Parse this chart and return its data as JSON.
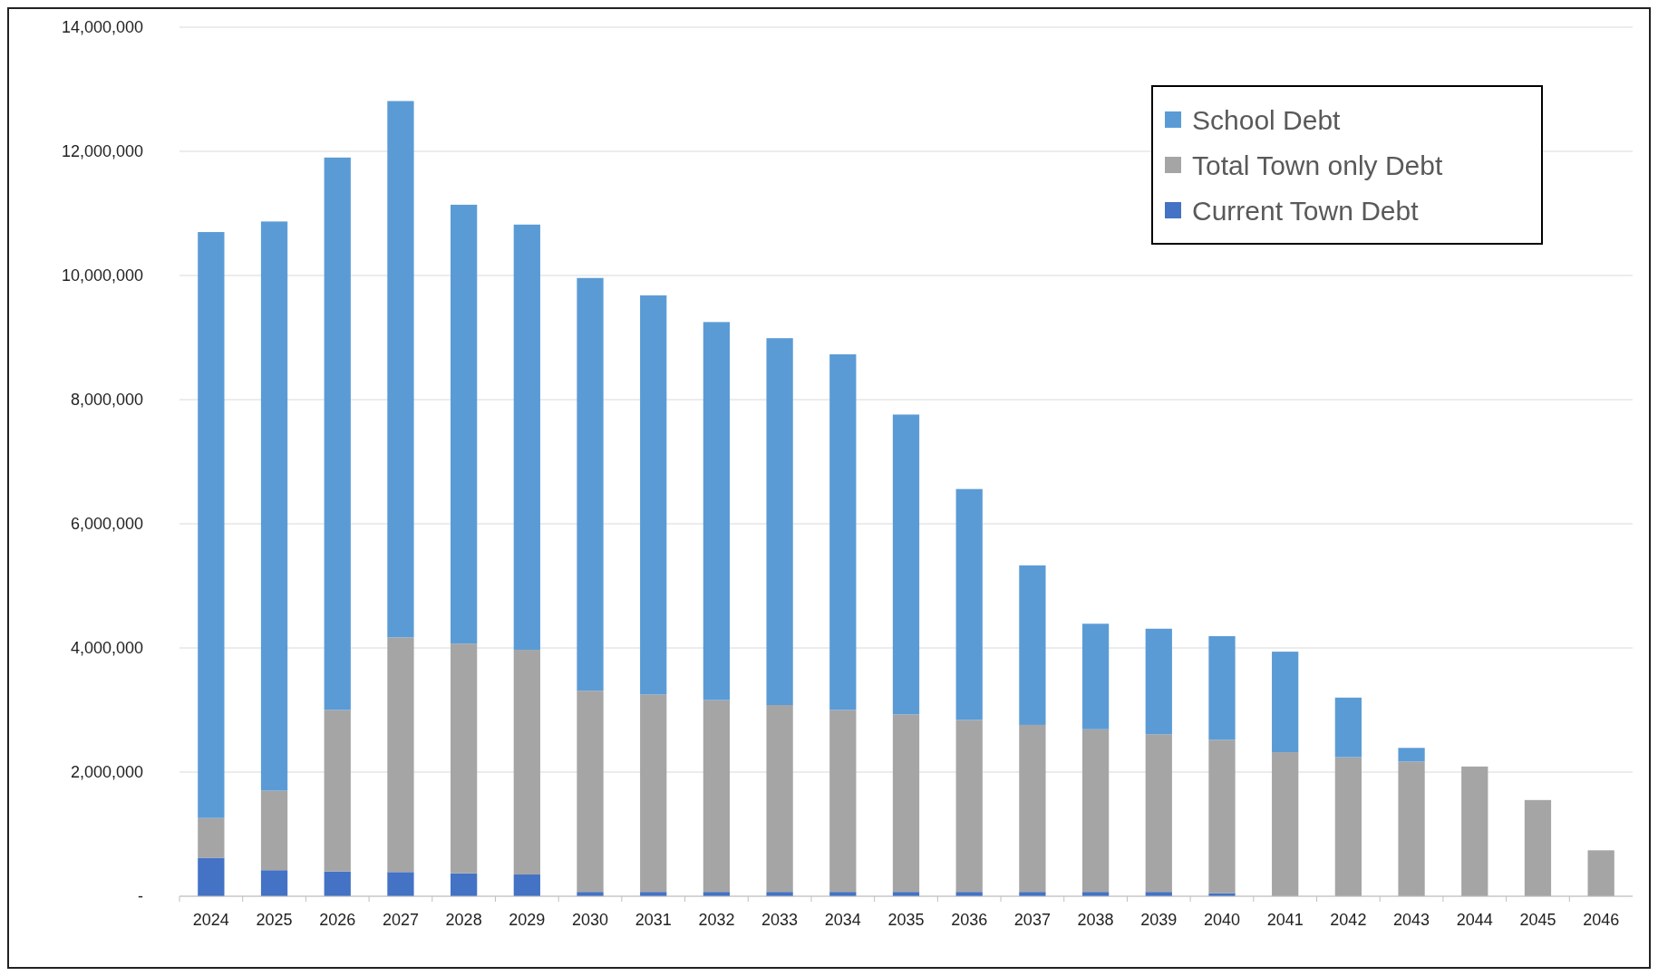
{
  "chart_data": {
    "type": "bar",
    "stacked": true,
    "categories": [
      "2024",
      "2025",
      "2026",
      "2027",
      "2028",
      "2029",
      "2030",
      "2031",
      "2032",
      "2033",
      "2034",
      "2035",
      "2036",
      "2037",
      "2038",
      "2039",
      "2040",
      "2041",
      "2042",
      "2043",
      "2044",
      "2045",
      "2046"
    ],
    "series": [
      {
        "name": "Current Town Debt",
        "color": "#4472c4",
        "values": [
          620000,
          420000,
          400000,
          390000,
          370000,
          350000,
          70000,
          70000,
          70000,
          70000,
          70000,
          70000,
          70000,
          70000,
          70000,
          70000,
          50000,
          0,
          0,
          0,
          0,
          0,
          0
        ]
      },
      {
        "name": "Total Town only Debt",
        "color": "#a5a5a5",
        "values": [
          640000,
          1280000,
          2600000,
          3780000,
          3700000,
          3620000,
          3240000,
          3180000,
          3090000,
          3010000,
          2930000,
          2860000,
          2770000,
          2690000,
          2620000,
          2540000,
          2470000,
          2320000,
          2240000,
          2170000,
          2090000,
          1550000,
          740000
        ]
      },
      {
        "name": "School Debt",
        "color": "#5b9bd5",
        "values": [
          9440000,
          9170000,
          8900000,
          8640000,
          7070000,
          6850000,
          6650000,
          6430000,
          6090000,
          5910000,
          5730000,
          4830000,
          3720000,
          2570000,
          1700000,
          1700000,
          1670000,
          1620000,
          960000,
          220000,
          0,
          0,
          0
        ]
      }
    ],
    "ylim": [
      0,
      14000000
    ],
    "yticks": [
      {
        "value": 0,
        "label": "-"
      },
      {
        "value": 2000000,
        "label": "2,000,000"
      },
      {
        "value": 4000000,
        "label": "4,000,000"
      },
      {
        "value": 6000000,
        "label": "6,000,000"
      },
      {
        "value": 8000000,
        "label": "8,000,000"
      },
      {
        "value": 10000000,
        "label": "10,000,000"
      },
      {
        "value": 12000000,
        "label": "12,000,000"
      },
      {
        "value": 14000000,
        "label": "14,000,000"
      }
    ],
    "grid": "y",
    "legend": "top right"
  }
}
